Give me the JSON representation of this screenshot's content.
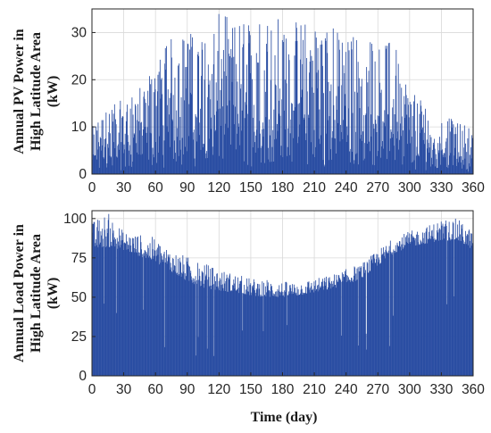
{
  "figure": {
    "accent_color": "#2b4ea3"
  },
  "chart_data": [
    {
      "type": "bar",
      "ylabel_lines": [
        "Annual PV Power in",
        "High Latitude Area",
        "(kW)"
      ],
      "xlabel": "",
      "xlim": [
        0,
        360
      ],
      "ylim": [
        0,
        35
      ],
      "xticks": [
        0,
        30,
        60,
        90,
        120,
        150,
        180,
        210,
        240,
        270,
        300,
        330,
        360
      ],
      "yticks": [
        0,
        10,
        20,
        30
      ],
      "grid": true,
      "color": "#2b4ea3",
      "x": [
        0,
        15,
        30,
        45,
        60,
        75,
        90,
        105,
        120,
        135,
        150,
        165,
        180,
        195,
        210,
        225,
        240,
        255,
        270,
        285,
        300,
        315,
        330,
        345,
        360
      ],
      "envelope_max": [
        10,
        14,
        16,
        19,
        24,
        29,
        30,
        32,
        34,
        33,
        32,
        34,
        33,
        33,
        32,
        32,
        30,
        30,
        29,
        28,
        18,
        16,
        13,
        11,
        10
      ]
    },
    {
      "type": "bar",
      "ylabel_lines": [
        "Annual Load Power in",
        "High Latitude Area",
        "(kW)"
      ],
      "xlabel": "Time (day)",
      "xlim": [
        0,
        360
      ],
      "ylim": [
        0,
        105
      ],
      "xticks": [
        0,
        30,
        60,
        90,
        120,
        150,
        180,
        210,
        240,
        270,
        300,
        330,
        360
      ],
      "yticks": [
        0,
        25,
        50,
        75,
        100
      ],
      "grid": true,
      "color": "#2b4ea3",
      "x": [
        0,
        15,
        30,
        45,
        60,
        75,
        90,
        105,
        120,
        135,
        150,
        165,
        180,
        195,
        210,
        225,
        240,
        255,
        270,
        285,
        300,
        315,
        330,
        345,
        360
      ],
      "envelope_max": [
        98,
        104,
        92,
        90,
        88,
        80,
        76,
        72,
        68,
        65,
        62,
        62,
        60,
        60,
        62,
        64,
        68,
        72,
        80,
        88,
        92,
        95,
        100,
        100,
        92
      ],
      "envelope_base": [
        80,
        82,
        80,
        76,
        72,
        66,
        60,
        56,
        54,
        53,
        51,
        50,
        50,
        51,
        53,
        55,
        58,
        62,
        70,
        78,
        82,
        84,
        86,
        86,
        80
      ]
    }
  ]
}
